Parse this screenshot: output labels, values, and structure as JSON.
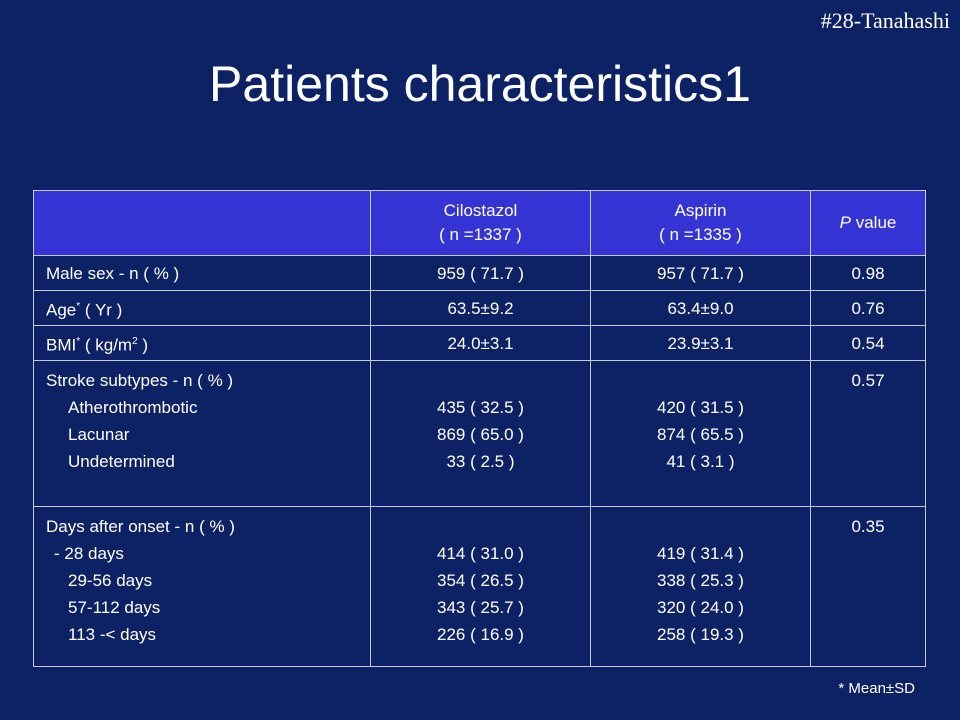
{
  "header": {
    "tag": "#28-Tanahashi",
    "title": "Patients characteristics1"
  },
  "table": {
    "columns": [
      [
        "Cilostazol",
        "( n =1337 )"
      ],
      [
        "Aspirin",
        "( n =1335 )"
      ],
      [
        "P",
        " value"
      ]
    ],
    "rows": [
      [
        [
          "Male sex - n ( % )"
        ],
        [
          "959 ( 71.7 )"
        ],
        [
          "957 ( 71.7 )"
        ],
        [
          "0.98"
        ]
      ],
      [
        [
          "Age",
          "*",
          " ( Yr )"
        ],
        [
          "63.5±9.2"
        ],
        [
          "63.4±9.0"
        ],
        [
          "0.76"
        ]
      ],
      [
        [
          "BMI",
          "*",
          " ( kg/m",
          "2",
          " )"
        ],
        [
          "24.0±3.1"
        ],
        [
          "23.9±3.1"
        ],
        [
          "0.54"
        ]
      ],
      [
        [
          "Stroke subtypes - n ( % )",
          "Atherothrombotic",
          "Lacunar",
          "Undetermined"
        ],
        [
          "435 ( 32.5 )",
          "869 ( 65.0 )",
          "33 ( 2.5 )"
        ],
        [
          "420 ( 31.5 )",
          "874 ( 65.5 )",
          "41 ( 3.1 )"
        ],
        [
          "0.57"
        ]
      ],
      [
        [
          "Days after onset - n ( % )",
          "- 28 days",
          "29-56 days",
          "57-112 days",
          "113 -< days"
        ],
        [
          "414 ( 31.0 )",
          "354 ( 26.5 )",
          "343 ( 25.7 )",
          "226 ( 16.9 )"
        ],
        [
          "419 ( 31.4 )",
          "338 ( 25.3 )",
          "320 ( 24.0 )",
          "258 ( 19.3 )"
        ],
        [
          "0.35"
        ]
      ]
    ]
  },
  "footnote": "* Mean±SD"
}
